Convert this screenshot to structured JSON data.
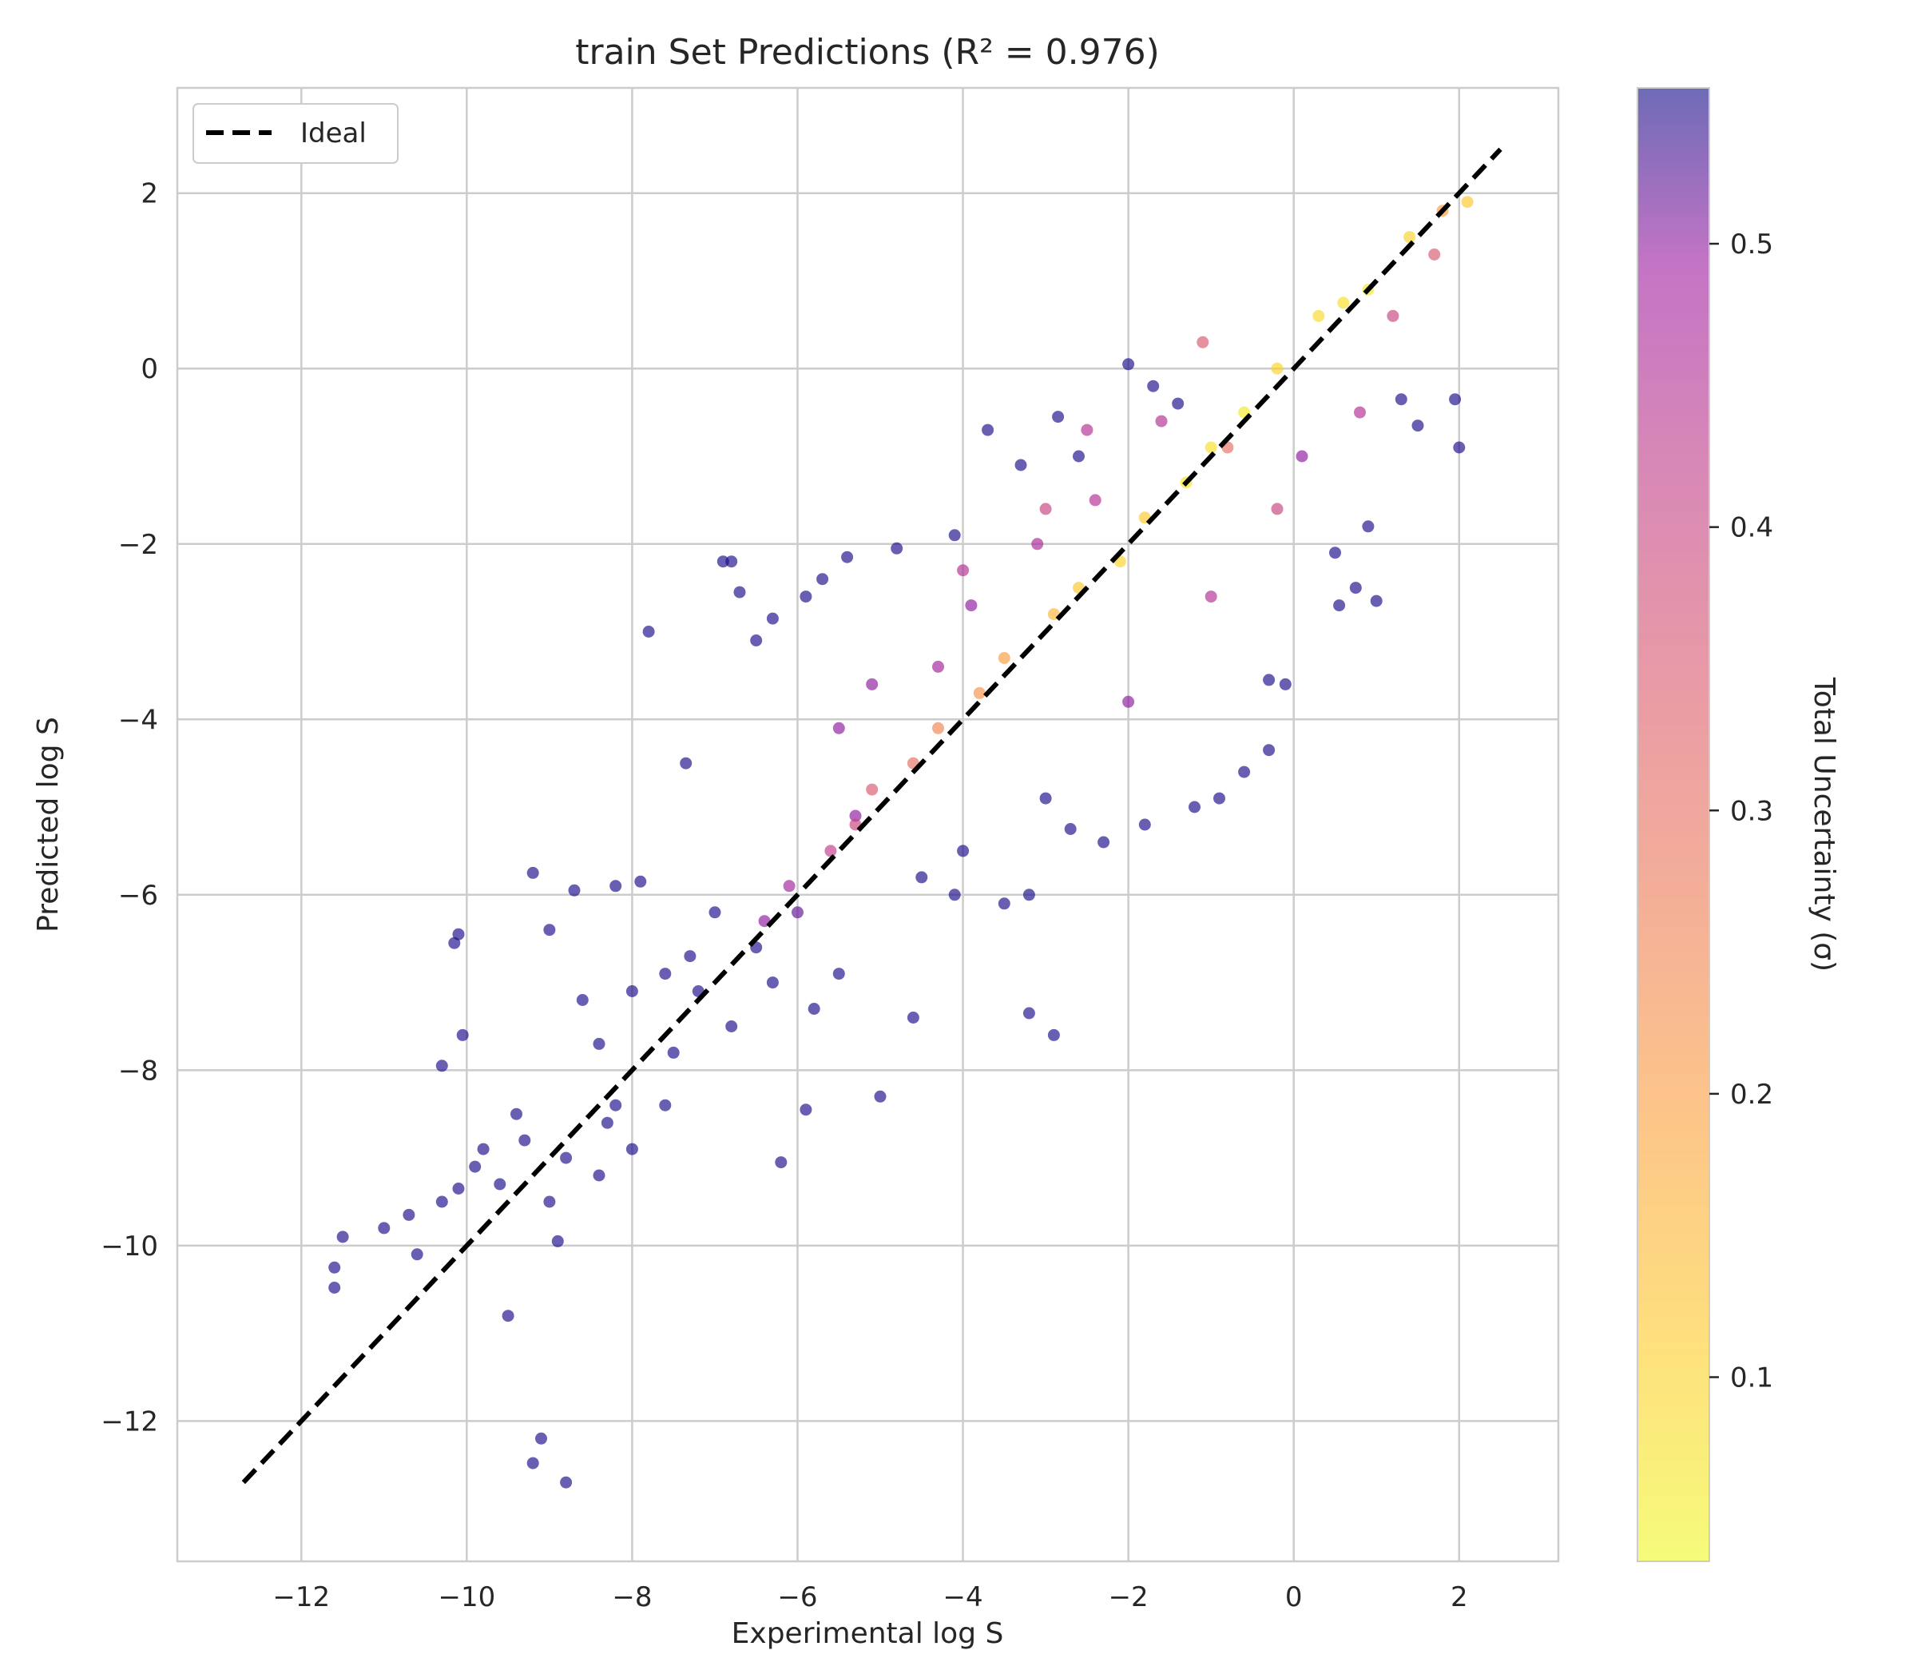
{
  "chart_data": {
    "type": "scatter",
    "title": "train Set Predictions (R² = 0.976)",
    "xlabel": "Experimental log S",
    "ylabel": "Predicted log S",
    "xlim": [
      -13.5,
      3.2
    ],
    "ylim": [
      -13.6,
      3.2
    ],
    "xticks": [
      {
        "value": -12,
        "label": "−12"
      },
      {
        "value": -10,
        "label": "−10"
      },
      {
        "value": -8,
        "label": "−8"
      },
      {
        "value": -6,
        "label": "−6"
      },
      {
        "value": -4,
        "label": "−4"
      },
      {
        "value": -2,
        "label": "−2"
      },
      {
        "value": 0,
        "label": "0"
      },
      {
        "value": 2,
        "label": "2"
      }
    ],
    "yticks": [
      {
        "value": 2,
        "label": "2"
      },
      {
        "value": 0,
        "label": "0"
      },
      {
        "value": -2,
        "label": "−2"
      },
      {
        "value": -4,
        "label": "−4"
      },
      {
        "value": -6,
        "label": "−6"
      },
      {
        "value": -8,
        "label": "−8"
      },
      {
        "value": -10,
        "label": "−10"
      },
      {
        "value": -12,
        "label": "−12"
      }
    ],
    "grid": true,
    "legend": {
      "position": "top-left",
      "entries": [
        "Ideal"
      ]
    },
    "ideal_line": {
      "x": [
        -12.7,
        2.5
      ],
      "y": [
        -12.7,
        2.5
      ],
      "style": "dashed",
      "color": "#000000"
    },
    "colormap": "plasma (reversed)",
    "colorbar": {
      "label": "Total Uncertainty (σ)",
      "range": [
        0.035,
        0.555
      ],
      "ticks": [
        {
          "value": 0.1,
          "label": "0.1"
        },
        {
          "value": 0.2,
          "label": "0.2"
        },
        {
          "value": 0.3,
          "label": "0.3"
        },
        {
          "value": 0.4,
          "label": "0.4"
        },
        {
          "value": 0.5,
          "label": "0.5"
        }
      ]
    },
    "point_alpha": 0.65,
    "points": [
      [
        -11.6,
        -10.25,
        0.55
      ],
      [
        -11.6,
        -10.48,
        0.55
      ],
      [
        -11.5,
        -9.9,
        0.55
      ],
      [
        -11.0,
        -9.8,
        0.55
      ],
      [
        -10.7,
        -9.65,
        0.55
      ],
      [
        -10.6,
        -10.1,
        0.55
      ],
      [
        -10.3,
        -9.5,
        0.55
      ],
      [
        -10.1,
        -9.35,
        0.55
      ],
      [
        -9.5,
        -10.8,
        0.55
      ],
      [
        -9.1,
        -12.2,
        0.55
      ],
      [
        -9.2,
        -12.48,
        0.55
      ],
      [
        -8.8,
        -12.7,
        0.55
      ],
      [
        -8.9,
        -9.95,
        0.55
      ],
      [
        -10.1,
        -6.45,
        0.55
      ],
      [
        -10.15,
        -6.55,
        0.55
      ],
      [
        -10.05,
        -7.6,
        0.55
      ],
      [
        -10.3,
        -7.95,
        0.55
      ],
      [
        -9.8,
        -8.9,
        0.55
      ],
      [
        -9.9,
        -9.1,
        0.55
      ],
      [
        -9.0,
        -9.5,
        0.55
      ],
      [
        -9.0,
        -6.4,
        0.55
      ],
      [
        -9.2,
        -5.75,
        0.55
      ],
      [
        -8.7,
        -5.95,
        0.55
      ],
      [
        -8.2,
        -5.9,
        0.55
      ],
      [
        -7.9,
        -5.85,
        0.55
      ],
      [
        -7.35,
        -4.5,
        0.55
      ],
      [
        -6.8,
        -2.2,
        0.55
      ],
      [
        -6.9,
        -2.2,
        0.55
      ],
      [
        -6.7,
        -2.55,
        0.55
      ],
      [
        -7.8,
        -3.0,
        0.55
      ],
      [
        -6.5,
        -3.1,
        0.55
      ],
      [
        -6.3,
        -2.85,
        0.55
      ],
      [
        -5.9,
        -2.6,
        0.55
      ],
      [
        -5.7,
        -2.4,
        0.55
      ],
      [
        -5.4,
        -2.15,
        0.55
      ],
      [
        -4.8,
        -2.05,
        0.55
      ],
      [
        -4.1,
        -1.9,
        0.55
      ],
      [
        -3.7,
        -0.7,
        0.55
      ],
      [
        -3.3,
        -1.1,
        0.55
      ],
      [
        -2.85,
        -0.55,
        0.55
      ],
      [
        -2.6,
        -1.0,
        0.55
      ],
      [
        -2.0,
        0.05,
        0.55
      ],
      [
        -1.7,
        -0.2,
        0.55
      ],
      [
        -1.4,
        -0.4,
        0.55
      ],
      [
        0.5,
        -2.1,
        0.55
      ],
      [
        0.9,
        -1.8,
        0.55
      ],
      [
        1.5,
        -0.65,
        0.55
      ],
      [
        2.0,
        -0.9,
        0.55
      ],
      [
        1.95,
        -0.35,
        0.55
      ],
      [
        1.3,
        -0.35,
        0.55
      ],
      [
        0.55,
        -2.7,
        0.55
      ],
      [
        0.75,
        -2.5,
        0.55
      ],
      [
        1.0,
        -2.65,
        0.55
      ],
      [
        -0.3,
        -3.55,
        0.55
      ],
      [
        -0.1,
        -3.6,
        0.55
      ],
      [
        -0.3,
        -4.35,
        0.55
      ],
      [
        -0.6,
        -4.6,
        0.55
      ],
      [
        -0.9,
        -4.9,
        0.55
      ],
      [
        -1.2,
        -5.0,
        0.55
      ],
      [
        -1.8,
        -5.2,
        0.55
      ],
      [
        -2.3,
        -5.4,
        0.55
      ],
      [
        -2.7,
        -5.25,
        0.55
      ],
      [
        -3.2,
        -6.0,
        0.55
      ],
      [
        -3.5,
        -6.1,
        0.55
      ],
      [
        -3.2,
        -7.35,
        0.55
      ],
      [
        -2.9,
        -7.6,
        0.55
      ],
      [
        -4.6,
        -7.4,
        0.55
      ],
      [
        -5.0,
        -8.3,
        0.55
      ],
      [
        -5.9,
        -8.45,
        0.55
      ],
      [
        -6.2,
        -9.05,
        0.55
      ],
      [
        -8.3,
        -8.6,
        0.55
      ],
      [
        -8.0,
        -8.9,
        0.55
      ],
      [
        -7.6,
        -8.4,
        0.55
      ],
      [
        -8.4,
        -9.2,
        0.55
      ],
      [
        -9.4,
        -8.5,
        0.55
      ],
      [
        -8.6,
        -7.2,
        0.55
      ],
      [
        -8.0,
        -7.1,
        0.55
      ],
      [
        -7.3,
        -6.7,
        0.55
      ],
      [
        -6.8,
        -7.5,
        0.55
      ],
      [
        -6.5,
        -6.6,
        0.55
      ],
      [
        -6.0,
        -6.2,
        0.52
      ],
      [
        -5.5,
        -6.9,
        0.55
      ],
      [
        -5.3,
        -5.1,
        0.5
      ],
      [
        -4.5,
        -5.8,
        0.55
      ],
      [
        -4.1,
        -6.0,
        0.55
      ],
      [
        -5.1,
        -3.6,
        0.5
      ],
      [
        -4.3,
        -3.4,
        0.48
      ],
      [
        -3.9,
        -2.7,
        0.5
      ],
      [
        -3.1,
        -2.0,
        0.47
      ],
      [
        -2.4,
        -1.5,
        0.45
      ],
      [
        -1.6,
        -0.6,
        0.45
      ],
      [
        -0.8,
        -0.9,
        0.3
      ],
      [
        0.1,
        -1.0,
        0.5
      ],
      [
        0.8,
        -0.5,
        0.45
      ],
      [
        1.2,
        0.6,
        0.4
      ],
      [
        1.7,
        1.3,
        0.35
      ],
      [
        1.8,
        1.8,
        0.2
      ],
      [
        2.1,
        1.9,
        0.12
      ],
      [
        1.4,
        1.5,
        0.1
      ],
      [
        0.6,
        0.75,
        0.08
      ],
      [
        -0.2,
        0.0,
        0.1
      ],
      [
        -1.0,
        -0.9,
        0.08
      ],
      [
        -1.8,
        -1.7,
        0.12
      ],
      [
        -2.6,
        -2.5,
        0.12
      ],
      [
        -3.5,
        -3.3,
        0.2
      ],
      [
        -4.3,
        -4.1,
        0.25
      ],
      [
        -5.1,
        -4.8,
        0.35
      ],
      [
        -5.6,
        -5.5,
        0.42
      ],
      [
        -6.4,
        -6.3,
        0.5
      ],
      [
        -7.2,
        -7.1,
        0.55
      ],
      [
        0.3,
        0.6,
        0.09
      ],
      [
        0.9,
        0.9,
        0.06
      ],
      [
        -0.6,
        -0.5,
        0.06
      ],
      [
        -1.3,
        -1.3,
        0.07
      ],
      [
        -2.1,
        -2.2,
        0.1
      ],
      [
        -2.9,
        -2.8,
        0.15
      ],
      [
        -3.8,
        -3.7,
        0.22
      ],
      [
        -4.6,
        -4.5,
        0.3
      ],
      [
        -5.3,
        -5.2,
        0.4
      ],
      [
        -6.1,
        -5.9,
        0.48
      ],
      [
        -1.1,
        0.3,
        0.35
      ],
      [
        -2.5,
        -0.7,
        0.45
      ],
      [
        -3.0,
        -1.6,
        0.4
      ],
      [
        -4.0,
        -2.3,
        0.45
      ],
      [
        -5.5,
        -4.1,
        0.5
      ],
      [
        -0.2,
        -1.6,
        0.4
      ],
      [
        -1.0,
        -2.6,
        0.45
      ],
      [
        -2.0,
        -3.8,
        0.5
      ],
      [
        -3.0,
        -4.9,
        0.55
      ],
      [
        -4.0,
        -5.5,
        0.55
      ],
      [
        -7.5,
        -7.8,
        0.55
      ],
      [
        -8.2,
        -8.4,
        0.55
      ],
      [
        -8.8,
        -9.0,
        0.55
      ],
      [
        -9.6,
        -9.3,
        0.55
      ],
      [
        -7.0,
        -6.2,
        0.55
      ],
      [
        -7.6,
        -6.9,
        0.55
      ],
      [
        -8.4,
        -7.7,
        0.55
      ],
      [
        -6.3,
        -7.0,
        0.55
      ],
      [
        -5.8,
        -7.3,
        0.55
      ],
      [
        -9.3,
        -8.8,
        0.55
      ]
    ]
  }
}
